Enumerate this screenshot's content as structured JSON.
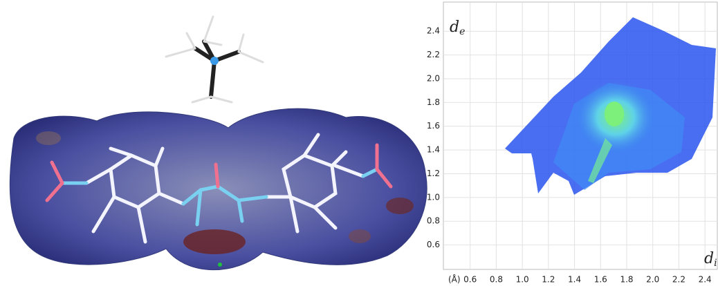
{
  "chart_data": {
    "type": "fingerprint",
    "x_label": "d",
    "x_label_sub": "i",
    "y_label": "d",
    "y_label_sub": "e",
    "unit_label": "(Å)",
    "xlim": [
      0.4,
      2.5
    ],
    "ylim": [
      0.4,
      2.5
    ],
    "xticks": [
      0.6,
      0.8,
      {
        "value": 1,
        "label": "1.0"
      },
      1.2,
      1.4,
      1.6,
      1.8,
      {
        "value": 2,
        "label": "2.0"
      },
      2.2,
      2.4
    ],
    "yticks": [
      0.6,
      0.8,
      {
        "value": 1,
        "label": "1.0"
      },
      1.2,
      1.4,
      1.6,
      1.8,
      {
        "value": 2,
        "label": "2.0"
      },
      2.2,
      2.4
    ],
    "grid": true
  }
}
